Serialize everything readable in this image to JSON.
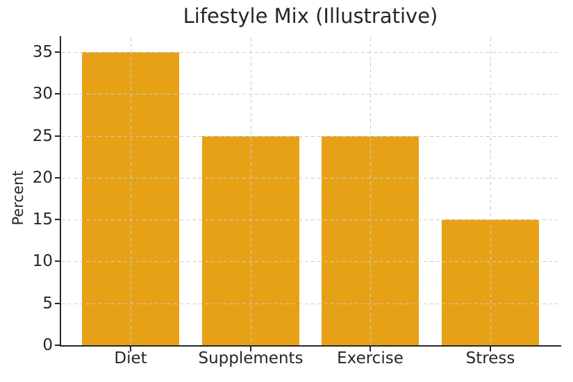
{
  "chart_data": {
    "type": "bar",
    "title": "Lifestyle Mix (Illustrative)",
    "xlabel": "",
    "ylabel": "Percent",
    "categories": [
      "Diet",
      "Supplements",
      "Exercise",
      "Stress"
    ],
    "values": [
      35,
      25,
      25,
      15
    ],
    "yticks": [
      0,
      5,
      10,
      15,
      20,
      25,
      30,
      35
    ],
    "ylim": [
      0,
      36.75
    ],
    "grid": "dashed gridlines on both axes, drawn over bars",
    "legend": "none",
    "colors": {
      "bar": "#E6A117",
      "grid": "#cccccc",
      "axis": "#262626",
      "text": "#262626",
      "background": "#ffffff"
    }
  }
}
